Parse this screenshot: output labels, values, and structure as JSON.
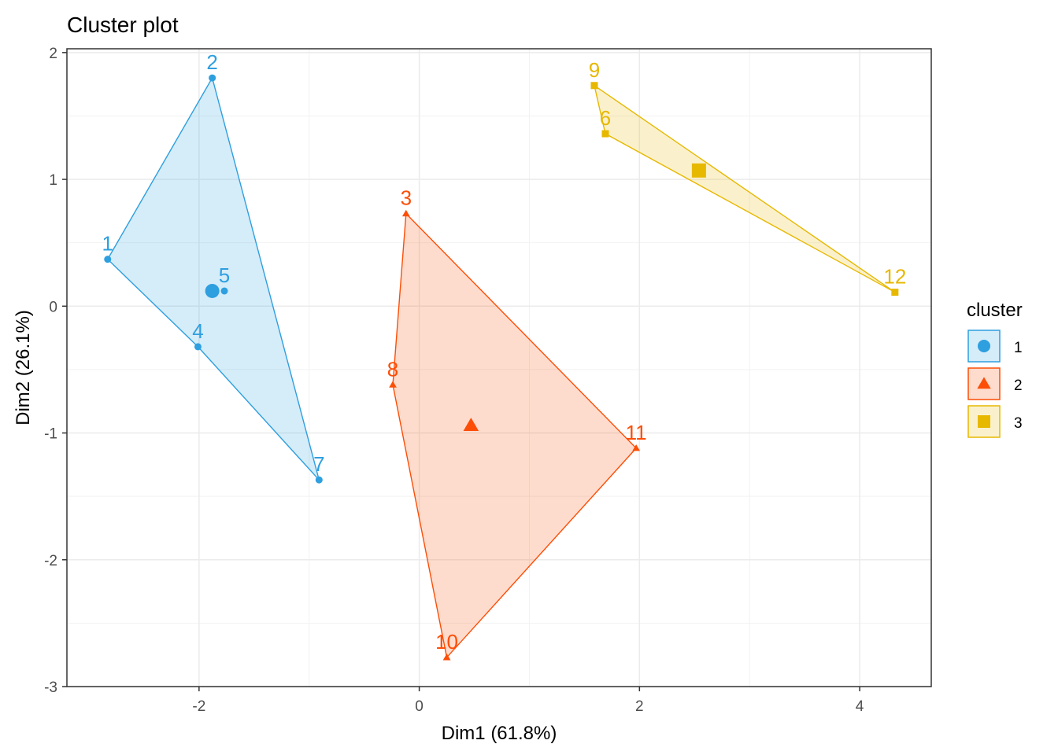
{
  "chart_data": {
    "type": "scatter",
    "title": "Cluster plot",
    "xlabel": "Dim1 (61.8%)",
    "ylabel": "Dim2 (26.1%)",
    "xlim": [
      -3.2,
      4.65
    ],
    "ylim": [
      -3.0,
      2.03
    ],
    "x_ticks": [
      -2,
      0,
      2,
      4
    ],
    "y_ticks": [
      -3,
      -2,
      -1,
      0,
      1,
      2
    ],
    "grid": true,
    "legend": {
      "title": "cluster",
      "position": "right"
    },
    "clusters": [
      {
        "name": "1",
        "color": "#2E9FDF",
        "shape": "circle",
        "hull": [
          "1",
          "2",
          "7",
          "4"
        ],
        "centroid": [
          -1.88,
          0.12
        ],
        "points": [
          {
            "label": "1",
            "x": -2.83,
            "y": 0.37
          },
          {
            "label": "2",
            "x": -1.88,
            "y": 1.8
          },
          {
            "label": "4",
            "x": -2.01,
            "y": -0.32
          },
          {
            "label": "5",
            "x": -1.77,
            "y": 0.12
          },
          {
            "label": "7",
            "x": -0.91,
            "y": -1.37
          }
        ]
      },
      {
        "name": "2",
        "color": "#FC4E07",
        "shape": "triangle",
        "hull": [
          "3",
          "11",
          "10",
          "8"
        ],
        "centroid": [
          0.47,
          -0.94
        ],
        "points": [
          {
            "label": "3",
            "x": -0.12,
            "y": 0.73
          },
          {
            "label": "8",
            "x": -0.24,
            "y": -0.62
          },
          {
            "label": "10",
            "x": 0.25,
            "y": -2.77
          },
          {
            "label": "11",
            "x": 1.97,
            "y": -1.12
          }
        ]
      },
      {
        "name": "3",
        "color": "#E7B800",
        "shape": "square",
        "hull": [
          "9",
          "12",
          "6"
        ],
        "centroid": [
          2.54,
          1.07
        ],
        "points": [
          {
            "label": "9",
            "x": 1.59,
            "y": 1.74
          },
          {
            "label": "6",
            "x": 1.69,
            "y": 1.36
          },
          {
            "label": "12",
            "x": 4.32,
            "y": 0.11
          }
        ]
      }
    ]
  }
}
